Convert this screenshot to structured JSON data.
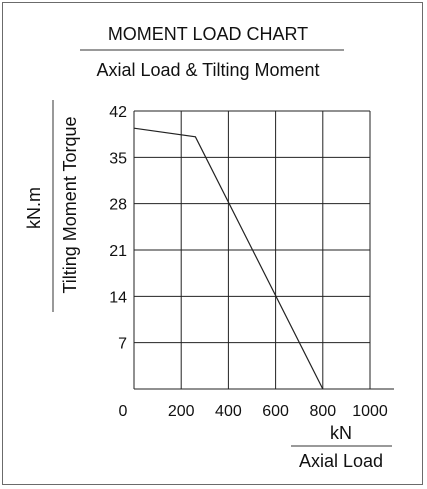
{
  "chart_data": {
    "type": "line",
    "title": "MOMENT LOAD CHART",
    "subtitle": "Axial Load & Tilting Moment",
    "xlabel_unit": "kN",
    "xlabel": "Axial Load",
    "ylabel_unit": "kN.m",
    "ylabel": "Tilting Moment Torque",
    "xlim": [
      0,
      1000
    ],
    "ylim": [
      0,
      42
    ],
    "x_ticks": [
      0,
      200,
      400,
      600,
      800,
      1000
    ],
    "y_ticks": [
      0,
      7,
      14,
      21,
      28,
      35,
      42
    ],
    "x_tick_labels": [
      "0",
      "200",
      "400",
      "600",
      "800",
      "1000"
    ],
    "y_tick_labels": [
      "7",
      "14",
      "21",
      "28",
      "35",
      "42"
    ],
    "grid": true,
    "series": [
      {
        "x": [
          0,
          260,
          800
        ],
        "y": [
          39.4,
          38.1,
          0
        ],
        "color": "#222222"
      }
    ]
  }
}
